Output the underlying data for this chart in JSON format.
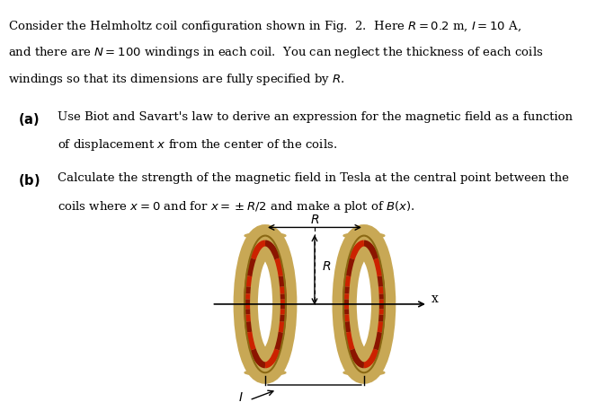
{
  "bg_color": "#ffffff",
  "text_color": "#000000",
  "text_lines": [
    "Consider the Helmholtz coil configuration shown in Fig.  2.  Here $R = 0.2$ m, $I = 10$ A,",
    "and there are $N = 100$ windings in each coil.  You can neglect the thickness of each coils",
    "windings so that its dimensions are fully specified by $R$."
  ],
  "part_a_label": "(a)",
  "part_a_text": "Use Biot and Savart’s law to derive an expression for the magnetic field as a function\n      of displacement $x$ from the center of the coils.",
  "part_b_label": "(b)",
  "part_b_text": "Calculate the strength of the magnetic field in Tesla at the central point between the\n      coils where $x = 0$ and for $x = \\pm R/2$ and make a plot of $B(x)$.",
  "coil_color_gold": "#C8A855",
  "coil_color_dark_gold": "#8B6914",
  "coil_color_red": "#CC2200",
  "coil_color_red_dark": "#8B1500",
  "fig_width": 6.73,
  "fig_height": 4.58,
  "dpi": 100,
  "font_size_main": 9.5,
  "font_size_label": 10.5
}
